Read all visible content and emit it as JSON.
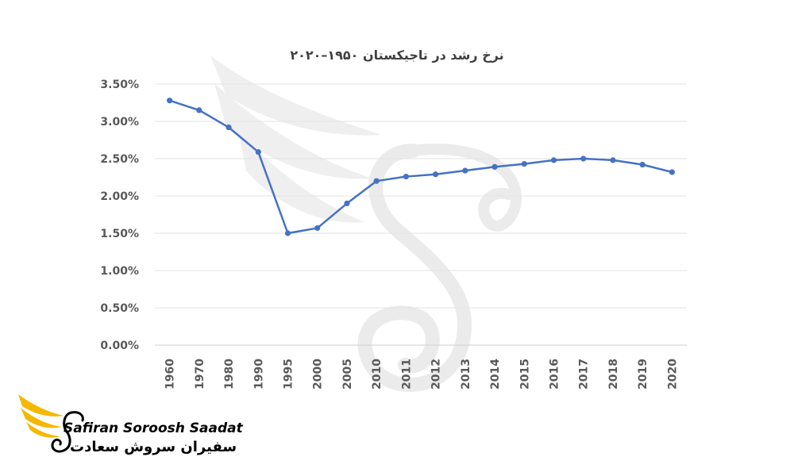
{
  "chart_data": {
    "type": "line",
    "title": "نرخ رشد در تاجیکستان ۱۹۵۰–۲۰۲۰",
    "xlabel": "",
    "ylabel": "",
    "ylim": [
      0,
      0.035
    ],
    "y_ticks": [
      "0.00%",
      "0.50%",
      "1.00%",
      "1.50%",
      "2.00%",
      "2.50%",
      "3.00%",
      "3.50%"
    ],
    "grid": true,
    "legend": "none",
    "categories": [
      "1960",
      "1970",
      "1980",
      "1990",
      "1995",
      "2000",
      "2005",
      "2010",
      "2011",
      "2012",
      "2013",
      "2014",
      "2015",
      "2016",
      "2017",
      "2018",
      "2019",
      "2020"
    ],
    "series": [
      {
        "color": "#4472c4",
        "values": [
          0.0328,
          0.0315,
          0.0292,
          0.0259,
          0.015,
          0.0157,
          0.019,
          0.022,
          0.0226,
          0.0229,
          0.0234,
          0.0239,
          0.0243,
          0.0248,
          0.025,
          0.0248,
          0.0242,
          0.0232
        ]
      }
    ]
  },
  "watermark": {
    "icon": "swan-wing-icon",
    "color": "#ebebeb"
  },
  "logo": {
    "icon": "swan-wing-icon",
    "name_en": "Safiran Soroosh Saadat",
    "name_fa": "سفیران سروش سعادت",
    "wing_color": "#f5b800",
    "swan_color": "#000000"
  }
}
